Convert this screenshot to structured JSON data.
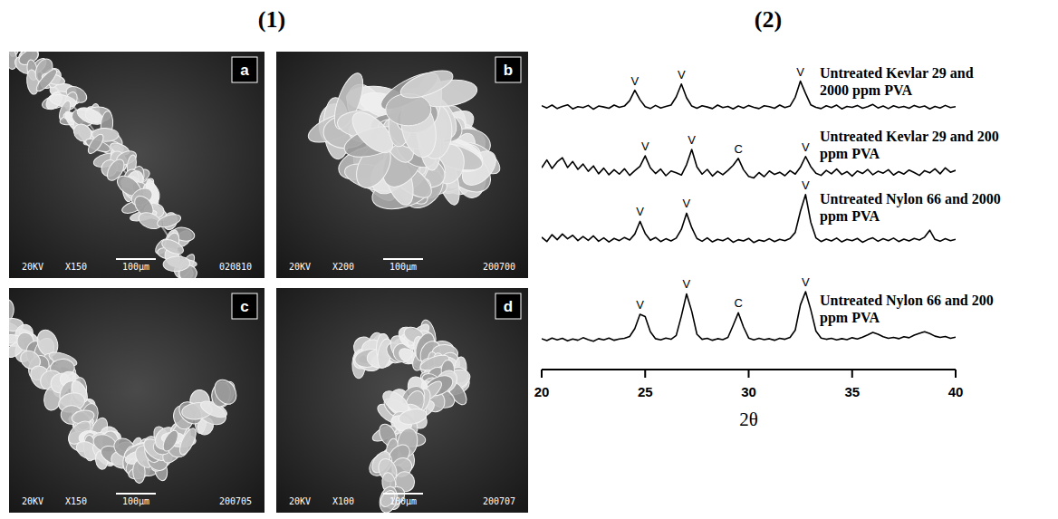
{
  "sem_panel": {
    "title": "(1)",
    "images": [
      {
        "letter": "a",
        "voltage": "20KV",
        "magnification": "X150",
        "scale": "100μm",
        "code": "020810"
      },
      {
        "letter": "b",
        "voltage": "20KV",
        "magnification": "X200",
        "scale": "100μm",
        "code": "200700"
      },
      {
        "letter": "c",
        "voltage": "20KV",
        "magnification": "X150",
        "scale": "100μm",
        "code": "200705"
      },
      {
        "letter": "d",
        "voltage": "20KV",
        "magnification": "X100",
        "scale": "100μm",
        "code": "200707"
      }
    ]
  },
  "chart_data": {
    "type": "line",
    "title": "(2)",
    "xlabel": "2θ",
    "xlim": [
      20,
      40
    ],
    "xticks": [
      20,
      25,
      30,
      35,
      40
    ],
    "ylim": [
      0,
      100
    ],
    "tick_labels": "x",
    "x": [
      20,
      20.25,
      20.5,
      20.75,
      21,
      21.25,
      21.5,
      21.75,
      22,
      22.25,
      22.5,
      22.75,
      23,
      23.25,
      23.5,
      23.75,
      24,
      24.25,
      24.5,
      24.75,
      25,
      25.25,
      25.5,
      25.75,
      26,
      26.25,
      26.5,
      26.75,
      27,
      27.25,
      27.5,
      27.75,
      28,
      28.25,
      28.5,
      28.75,
      29,
      29.25,
      29.5,
      29.75,
      30,
      30.25,
      30.5,
      30.75,
      31,
      31.25,
      31.5,
      31.75,
      32,
      32.25,
      32.5,
      32.75,
      33,
      33.25,
      33.5,
      33.75,
      34,
      34.25,
      34.5,
      34.75,
      35,
      35.25,
      35.5,
      35.75,
      36,
      36.25,
      36.5,
      36.75,
      37,
      37.25,
      37.5,
      37.75,
      38,
      38.25,
      38.5,
      38.75,
      39,
      39.25,
      39.5,
      39.75,
      40
    ],
    "series": [
      {
        "name": "Untreated Kevlar 29 and 2000 ppm PVA",
        "color": "#000000",
        "values": [
          83.7,
          83.0,
          83.9,
          82.8,
          83.5,
          84.0,
          82.7,
          83.4,
          83.1,
          83.8,
          82.6,
          83.6,
          83.3,
          82.9,
          83.9,
          83.2,
          83.6,
          85.3,
          88.6,
          85.6,
          83.4,
          82.8,
          83.8,
          83.0,
          83.5,
          83.9,
          86.5,
          90.6,
          86.2,
          83.6,
          82.9,
          83.7,
          83.3,
          82.8,
          83.9,
          83.1,
          83.5,
          82.7,
          83.6,
          83.0,
          83.8,
          83.2,
          82.8,
          83.7,
          83.4,
          82.9,
          83.9,
          83.1,
          83.6,
          86.4,
          91.5,
          87.6,
          84.0,
          83.2,
          82.8,
          83.7,
          83.1,
          83.9,
          82.7,
          83.5,
          83.2,
          83.8,
          82.9,
          83.4,
          84.1,
          83.0,
          83.6,
          82.8,
          83.7,
          83.1,
          83.5,
          82.9,
          83.8,
          83.2,
          83.6,
          82.7,
          83.5,
          83.0,
          83.8,
          83.1,
          83.4
        ],
        "annotations": [
          {
            "x": 24.5,
            "label": "V"
          },
          {
            "x": 26.75,
            "label": "V"
          },
          {
            "x": 32.5,
            "label": "V"
          }
        ]
      },
      {
        "name": "Untreated Kevlar 29 and 200 ppm PVA",
        "color": "#000000",
        "values": [
          64.0,
          66.5,
          63.8,
          65.9,
          67.2,
          64.1,
          66.0,
          63.5,
          65.2,
          62.9,
          64.6,
          62.1,
          63.9,
          61.8,
          63.4,
          62.0,
          63.7,
          61.6,
          63.1,
          64.5,
          67.8,
          64.0,
          62.2,
          63.6,
          61.5,
          63.0,
          62.4,
          61.7,
          65.0,
          69.8,
          64.3,
          62.0,
          63.5,
          61.4,
          62.9,
          61.8,
          63.2,
          64.8,
          67.0,
          63.4,
          61.3,
          60.8,
          62.5,
          61.2,
          63.0,
          61.9,
          62.6,
          61.5,
          63.1,
          62.0,
          64.2,
          67.6,
          64.4,
          62.3,
          61.6,
          63.2,
          62.1,
          63.6,
          61.9,
          62.8,
          61.4,
          63.0,
          62.2,
          63.5,
          61.8,
          62.9,
          62.3,
          63.4,
          61.7,
          62.8,
          62.0,
          63.3,
          62.5,
          61.6,
          63.1,
          62.4,
          63.7,
          62.1,
          64.0,
          62.6,
          63.2
        ],
        "annotations": [
          {
            "x": 25,
            "label": "V"
          },
          {
            "x": 27.25,
            "label": "V"
          },
          {
            "x": 29.5,
            "label": "C"
          },
          {
            "x": 32.75,
            "label": "V"
          }
        ]
      },
      {
        "name": "Untreated Nylon 66 and 2000 ppm PVA",
        "color": "#000000",
        "values": [
          42.0,
          40.6,
          42.8,
          41.2,
          43.0,
          41.5,
          42.6,
          40.9,
          42.2,
          41.0,
          42.4,
          40.7,
          41.8,
          40.5,
          41.6,
          40.9,
          41.9,
          41.1,
          43.0,
          47.0,
          43.2,
          41.0,
          41.9,
          40.6,
          41.5,
          40.8,
          41.7,
          44.5,
          49.6,
          45.0,
          41.6,
          40.7,
          41.8,
          40.5,
          41.3,
          40.9,
          41.7,
          40.4,
          41.2,
          40.8,
          41.6,
          40.3,
          41.1,
          40.7,
          41.5,
          40.6,
          41.3,
          40.9,
          41.6,
          43.5,
          50.2,
          55.5,
          46.8,
          41.8,
          40.6,
          41.4,
          40.8,
          41.7,
          40.5,
          41.3,
          40.9,
          41.6,
          40.4,
          41.2,
          41.8,
          40.7,
          41.5,
          40.9,
          41.7,
          40.6,
          41.4,
          40.8,
          41.6,
          41.1,
          42.0,
          44.2,
          41.3,
          40.7,
          41.5,
          40.9,
          41.3
        ],
        "annotations": [
          {
            "x": 24.75,
            "label": "V"
          },
          {
            "x": 27,
            "label": "V"
          },
          {
            "x": 32.75,
            "label": "V"
          }
        ]
      },
      {
        "name": "Untreated Nylon 66 and 200 ppm PVA",
        "color": "#000000",
        "values": [
          9.8,
          9.2,
          10.0,
          9.4,
          9.9,
          9.1,
          9.7,
          9.3,
          10.1,
          9.5,
          9.0,
          9.8,
          9.4,
          10.0,
          9.3,
          9.7,
          9.9,
          10.5,
          13.0,
          17.5,
          16.8,
          12.0,
          9.8,
          9.4,
          10.0,
          9.6,
          10.8,
          17.0,
          24.0,
          18.5,
          11.2,
          9.6,
          9.9,
          9.3,
          9.8,
          9.5,
          10.2,
          14.0,
          18.0,
          13.5,
          10.0,
          9.4,
          9.9,
          9.5,
          9.8,
          9.3,
          9.9,
          9.6,
          10.2,
          12.5,
          20.5,
          24.7,
          19.0,
          12.2,
          10.0,
          9.6,
          9.9,
          9.4,
          9.8,
          9.5,
          10.1,
          9.7,
          10.3,
          11.0,
          11.8,
          11.2,
          10.4,
          9.9,
          10.2,
          9.8,
          10.4,
          10.1,
          10.9,
          11.5,
          12.0,
          11.4,
          10.6,
          10.2,
          10.5,
          9.9,
          10.3
        ],
        "annotations": [
          {
            "x": 24.75,
            "label": "V"
          },
          {
            "x": 27,
            "label": "V"
          },
          {
            "x": 29.5,
            "label": "C"
          },
          {
            "x": 32.75,
            "label": "V"
          }
        ]
      }
    ]
  }
}
